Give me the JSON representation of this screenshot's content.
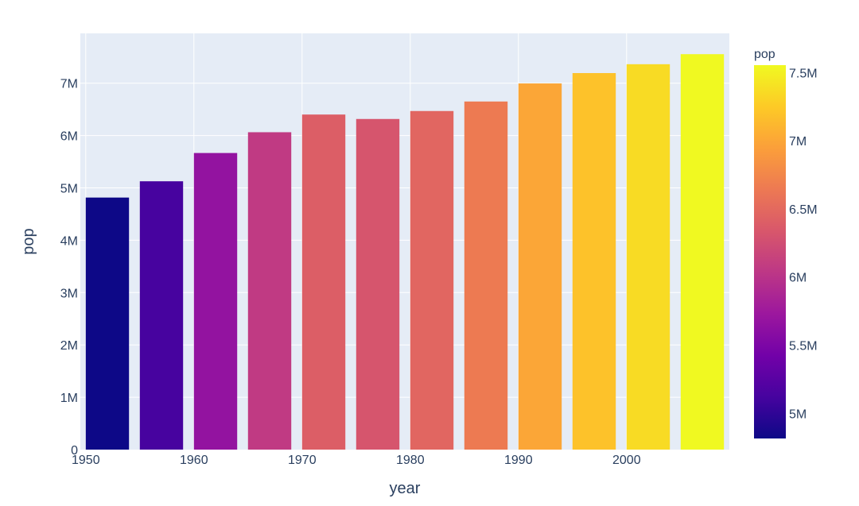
{
  "chart_data": {
    "type": "bar",
    "title": "",
    "xlabel": "year",
    "ylabel": "pop",
    "x": [
      1952,
      1957,
      1962,
      1967,
      1972,
      1977,
      1982,
      1987,
      1992,
      1997,
      2002,
      2007
    ],
    "values": [
      4815000,
      5126000,
      5666000,
      6063000,
      6401000,
      6316000,
      6468000,
      6650000,
      6995000,
      7193000,
      7362000,
      7554000
    ],
    "xlim": [
      1949.5,
      2009.5
    ],
    "ylim": [
      0,
      7951579
    ],
    "x_ticks": [
      1950,
      1960,
      1970,
      1980,
      1990,
      2000
    ],
    "x_tick_labels": [
      "1950",
      "1960",
      "1970",
      "1980",
      "1990",
      "2000"
    ],
    "y_ticks": [
      0,
      1000000,
      2000000,
      3000000,
      4000000,
      5000000,
      6000000,
      7000000
    ],
    "y_tick_labels": [
      "0",
      "1M",
      "2M",
      "3M",
      "4M",
      "5M",
      "6M",
      "7M"
    ],
    "grid": true,
    "colorbar": {
      "title": "pop",
      "range": [
        4815000,
        7554000
      ],
      "ticks": [
        5000000,
        5500000,
        6000000,
        6500000,
        7000000,
        7500000
      ],
      "tick_labels": [
        "5M",
        "5.5M",
        "6M",
        "6.5M",
        "7M",
        "7.5M"
      ],
      "placement": "right"
    },
    "colorscale": [
      "#0d0887",
      "#46039f",
      "#7201a8",
      "#9c179e",
      "#bd3786",
      "#d8576b",
      "#ed7953",
      "#fb9f3a",
      "#fdca26",
      "#f0f921"
    ],
    "plot_background": "#e5ecf6",
    "gridline_color": "#ffffff",
    "text_color": "#2a3f5f"
  }
}
